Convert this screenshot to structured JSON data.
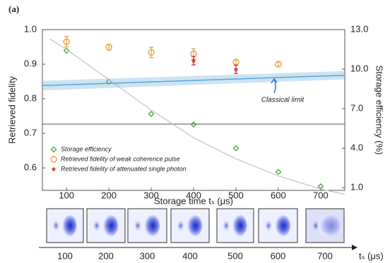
{
  "panel_label": "(a)",
  "chart_data": {
    "type": "scatter",
    "ylabel": "Retrieved fidelity",
    "y2label": "Storage efficiency (%)",
    "xlabel": "Storage time tₛ (μs)",
    "xlim": [
      43,
      757
    ],
    "xticks": [
      100,
      200,
      300,
      400,
      500,
      600,
      700
    ],
    "ylim": [
      0.535,
      1.0
    ],
    "yticks": [
      0.6,
      0.7,
      0.8,
      0.9,
      {
        "value": 1.0,
        "label": "1.0"
      }
    ],
    "y2lim": [
      0.8,
      13.0
    ],
    "y2ticks": [
      {
        "value": 13,
        "label": "13.0"
      },
      {
        "value": 10,
        "label": "10.0"
      },
      {
        "value": 7,
        "label": "7.0"
      },
      {
        "value": 4,
        "label": "4.0"
      },
      {
        "value": 1,
        "label": "1.0"
      }
    ],
    "legend": "lower left",
    "annotation": "Classical limit",
    "series": [
      {
        "name": "Storage efficiency",
        "color": "#3a9a3a",
        "marker": "diamond",
        "axis": "y2",
        "x": [
          100,
          200,
          300,
          400,
          500,
          600,
          700
        ],
        "values": [
          11.4,
          9.05,
          6.6,
          5.8,
          4.0,
          2.2,
          1.1
        ]
      },
      {
        "name": "Retrieved fidelity of weak coherence pulse",
        "color": "#e8a040",
        "marker": "circle",
        "x": [
          100,
          200,
          300,
          400,
          500,
          600
        ],
        "values": [
          0.965,
          0.949,
          0.934,
          0.93,
          0.906,
          0.9
        ],
        "errors": [
          0.015,
          0.008,
          0.015,
          0.015,
          0.007,
          0.007
        ]
      },
      {
        "name": "Retrieved fidelity of  attenuated single photon",
        "color": "#d03030",
        "marker": "star",
        "x": [
          400,
          500
        ],
        "values": [
          0.91,
          0.885
        ],
        "errors": [
          0.012,
          0.012
        ]
      },
      {
        "color": "#c4c4c4",
        "marker": "line",
        "axis": "y2",
        "x": [
          60,
          100,
          200,
          300,
          400,
          500,
          600,
          700,
          757
        ],
        "values": [
          12.3,
          11.5,
          9.2,
          6.9,
          4.8,
          3.2,
          1.9,
          0.9,
          0.5
        ]
      },
      {
        "color": "#5aa5d8",
        "marker": "band",
        "x": [
          43,
          757
        ],
        "values": [
          0.838,
          0.868
        ],
        "lower": [
          0.824,
          0.856
        ],
        "upper": [
          0.852,
          0.88
        ]
      }
    ]
  },
  "image_strip": {
    "labels": [
      "100",
      "200",
      "300",
      "400",
      "500",
      "600",
      "700"
    ],
    "axis_label": "tₛ (μs)"
  }
}
